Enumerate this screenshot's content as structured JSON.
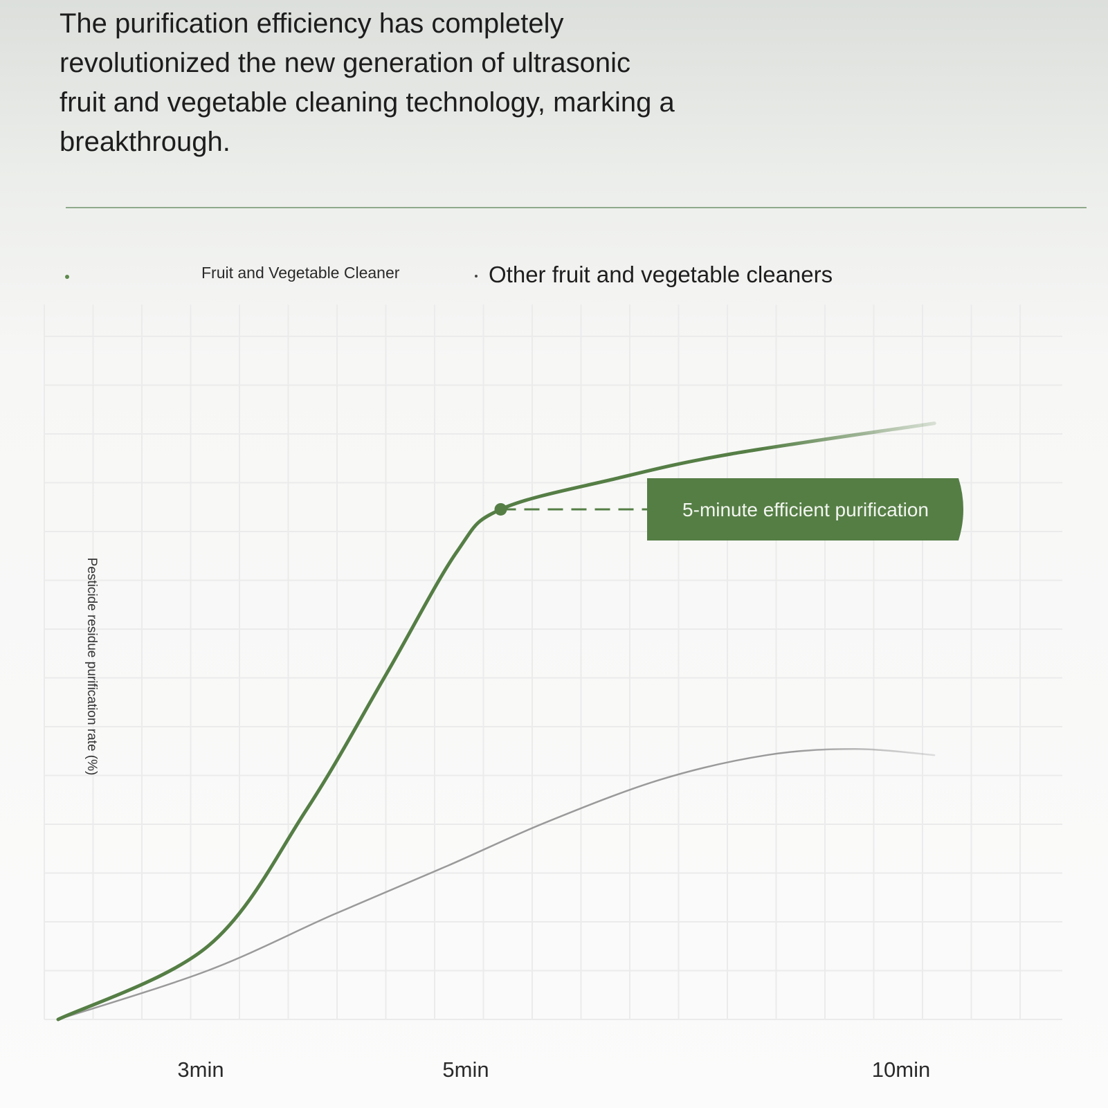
{
  "headline": [
    "The purification efficiency has completely",
    "revolutionized the new generation of ultrasonic",
    "fruit and vegetable cleaning technology, marking a",
    " breakthrough."
  ],
  "colors": {
    "primary_series": "#557e45",
    "secondary_series": "#9a9a9a",
    "callout_bg": "#557e45",
    "grid": "#ebebeb"
  },
  "chart_data": {
    "type": "line",
    "title": "",
    "xlabel": "",
    "ylabel": "Pesticide residue purification rate (%)",
    "x_ticks": [
      "3min",
      "5min",
      "10min"
    ],
    "legend_position": "top-left",
    "grid": true,
    "annotation": {
      "text": "5-minute efficient purification",
      "x": "5min"
    },
    "series": [
      {
        "name": "Fruit and Vegetable Cleaner",
        "color": "#557e45",
        "points": [
          [
            0,
            0
          ],
          [
            1.7,
            12
          ],
          [
            2.8,
            34
          ],
          [
            3.7,
            56
          ],
          [
            4.5,
            76
          ],
          [
            5,
            83
          ],
          [
            6.3,
            88
          ],
          [
            7.6,
            92
          ],
          [
            9.9,
            97
          ]
        ]
      },
      {
        "name": "Other fruit and vegetable cleaners",
        "color": "#9a9a9a",
        "points": [
          [
            0,
            0
          ],
          [
            1.7,
            8
          ],
          [
            3.1,
            17
          ],
          [
            4.4,
            25
          ],
          [
            5.5,
            32
          ],
          [
            6.8,
            39
          ],
          [
            8,
            43
          ],
          [
            9,
            44
          ],
          [
            9.9,
            43
          ]
        ]
      }
    ]
  }
}
